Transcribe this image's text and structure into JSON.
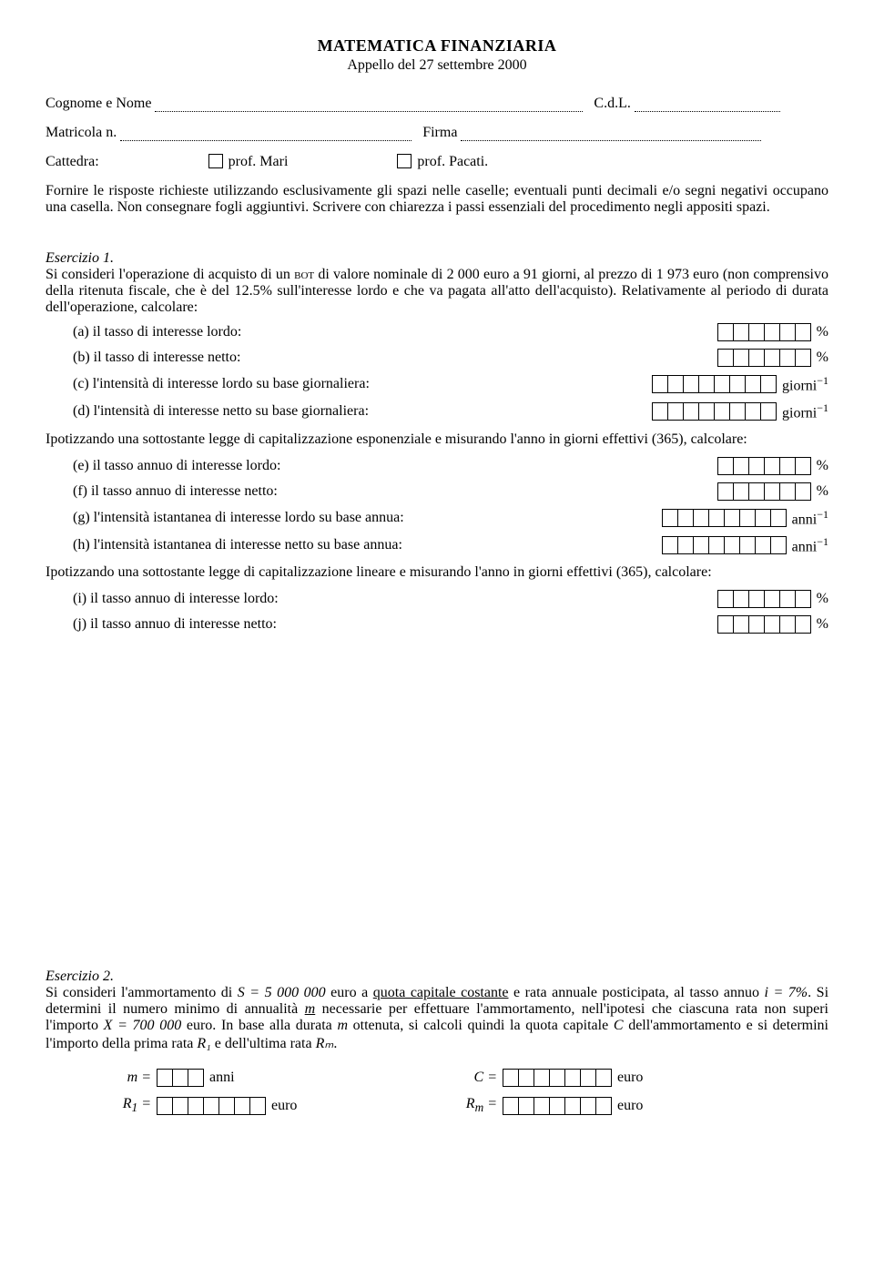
{
  "header": {
    "title": "MATEMATICA FINANZIARIA",
    "subtitle": "Appello del 27 settembre 2000"
  },
  "form": {
    "cognome_label": "Cognome e Nome",
    "cdl_label": "C.d.L.",
    "matricola_label": "Matricola n.",
    "firma_label": "Firma",
    "cattedra_label": "Cattedra:",
    "prof1": "prof. Mari",
    "prof2": "prof. Pacati."
  },
  "instructions": "Fornire le risposte richieste utilizzando esclusivamente gli spazi nelle caselle; eventuali punti decimali e/o segni negativi occupano una casella. Non consegnare fogli aggiuntivi. Scrivere con chiarezza i passi essenziali del procedimento negli appositi spazi.",
  "ex1": {
    "heading": "Esercizio 1.",
    "text_pre": "Si consideri l'operazione di acquisto di un ",
    "bot": "bot",
    "text_post": " di valore nominale di 2 000 euro a 91 giorni, al prezzo di 1 973 euro (non comprensivo della ritenuta fiscale, che è del 12.5% sull'interesse lordo e che va pagata all'atto dell'acquisto). Relativamente al periodo di durata dell'operazione, calcolare:",
    "items1": [
      {
        "l": "(a) il tasso di interesse lordo:",
        "cells": 6,
        "u": "%"
      },
      {
        "l": "(b) il tasso di interesse netto:",
        "cells": 6,
        "u": "%"
      },
      {
        "l": "(c) l'intensità di interesse lordo su base giornaliera:",
        "cells": 8,
        "u": "giorni⁻¹"
      },
      {
        "l": "(d) l'intensità di interesse netto su base giornaliera:",
        "cells": 8,
        "u": "giorni⁻¹"
      }
    ],
    "para2": "Ipotizzando una sottostante legge di capitalizzazione esponenziale e misurando l'anno in giorni effettivi (365), calcolare:",
    "items2": [
      {
        "l": "(e) il tasso annuo di interesse lordo:",
        "cells": 6,
        "u": "%"
      },
      {
        "l": "(f) il tasso annuo di interesse netto:",
        "cells": 6,
        "u": "%"
      },
      {
        "l": "(g) l'intensità istantanea di interesse lordo su base annua:",
        "cells": 8,
        "u": "anni⁻¹"
      },
      {
        "l": "(h) l'intensità istantanea di interesse netto su base annua:",
        "cells": 8,
        "u": "anni⁻¹"
      }
    ],
    "para3": "Ipotizzando una sottostante legge di capitalizzazione lineare e misurando l'anno in giorni effettivi (365), calcolare:",
    "items3": [
      {
        "l": "(i) il tasso annuo di interesse lordo:",
        "cells": 6,
        "u": "%"
      },
      {
        "l": "(j) il tasso annuo di interesse netto:",
        "cells": 6,
        "u": "%"
      }
    ]
  },
  "ex2": {
    "heading": "Esercizio 2.",
    "t0": "Si consideri l'ammortamento di ",
    "S_expr": "S = 5 000 000",
    "t1": " euro a ",
    "underlined": "quota capitale costante",
    "t2": " e rata annuale posticipata, al tasso annuo ",
    "i_expr": "i = 7%",
    "t3": ". Si determini il numero minimo di annualità ",
    "m_u": "m",
    "t4": " necessarie per effettuare l'ammortamento, nell'ipotesi che ciascuna rata non superi l'importo ",
    "X_expr": "X = 700 000",
    "t5": " euro. In base alla durata ",
    "m2": "m",
    "t6": " ottenuta, si calcoli quindi la quota capitale ",
    "C": "C",
    "t7": " dell'ammortamento e si determini l'importo della prima rata ",
    "R1": "R₁",
    "t8": " e dell'ultima rata ",
    "Rm": "Rₘ",
    "t9": ".",
    "answers": [
      {
        "var": "m =",
        "cells": 3,
        "u": "anni"
      },
      {
        "var": "C =",
        "cells": 7,
        "u": "euro"
      },
      {
        "var": "R₁ =",
        "cells": 7,
        "u": "euro"
      },
      {
        "var": "Rₘ =",
        "cells": 7,
        "u": "euro"
      }
    ]
  }
}
